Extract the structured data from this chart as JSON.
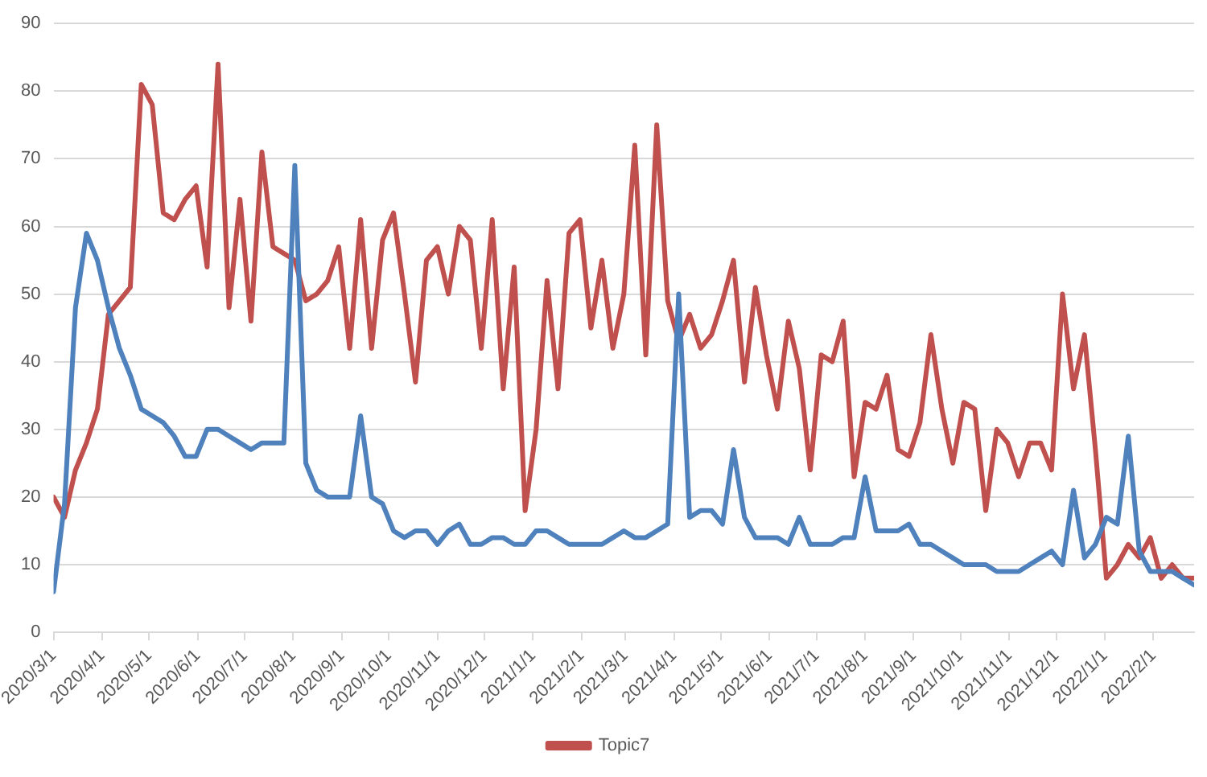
{
  "chart_data": {
    "type": "line",
    "x": [
      "2020-03-01",
      "2020-03-08",
      "2020-03-15",
      "2020-03-22",
      "2020-03-29",
      "2020-04-05",
      "2020-04-12",
      "2020-04-19",
      "2020-04-26",
      "2020-05-03",
      "2020-05-10",
      "2020-05-17",
      "2020-05-24",
      "2020-05-31",
      "2020-06-07",
      "2020-06-14",
      "2020-06-21",
      "2020-06-28",
      "2020-07-05",
      "2020-07-12",
      "2020-07-19",
      "2020-07-26",
      "2020-08-02",
      "2020-08-09",
      "2020-08-16",
      "2020-08-23",
      "2020-08-30",
      "2020-09-06",
      "2020-09-13",
      "2020-09-20",
      "2020-09-27",
      "2020-10-04",
      "2020-10-11",
      "2020-10-18",
      "2020-10-25",
      "2020-11-01",
      "2020-11-08",
      "2020-11-15",
      "2020-11-22",
      "2020-11-29",
      "2020-12-06",
      "2020-12-13",
      "2020-12-20",
      "2020-12-27",
      "2021-01-03",
      "2021-01-10",
      "2021-01-17",
      "2021-01-24",
      "2021-01-31",
      "2021-02-07",
      "2021-02-14",
      "2021-02-21",
      "2021-02-28",
      "2021-03-07",
      "2021-03-14",
      "2021-03-21",
      "2021-03-28",
      "2021-04-04",
      "2021-04-11",
      "2021-04-18",
      "2021-04-25",
      "2021-05-02",
      "2021-05-09",
      "2021-05-16",
      "2021-05-23",
      "2021-05-30",
      "2021-06-06",
      "2021-06-13",
      "2021-06-20",
      "2021-06-27",
      "2021-07-04",
      "2021-07-11",
      "2021-07-18",
      "2021-07-25",
      "2021-08-01",
      "2021-08-08",
      "2021-08-15",
      "2021-08-22",
      "2021-08-29",
      "2021-09-05",
      "2021-09-12",
      "2021-09-19",
      "2021-09-26",
      "2021-10-03",
      "2021-10-10",
      "2021-10-17",
      "2021-10-24",
      "2021-10-31",
      "2021-11-07",
      "2021-11-14",
      "2021-11-21",
      "2021-11-28",
      "2021-12-05",
      "2021-12-12",
      "2021-12-19",
      "2021-12-26",
      "2022-01-02",
      "2022-01-09",
      "2022-01-16",
      "2022-01-23",
      "2022-01-30",
      "2022-02-06",
      "2022-02-13",
      "2022-02-20",
      "2022-02-27"
    ],
    "series": [
      {
        "color": "#4f81bd",
        "values": [
          6,
          19,
          48,
          59,
          55,
          48,
          42,
          38,
          33,
          32,
          31,
          29,
          26,
          26,
          30,
          30,
          29,
          28,
          27,
          28,
          28,
          28,
          69,
          25,
          21,
          20,
          20,
          20,
          32,
          20,
          19,
          15,
          14,
          15,
          15,
          13,
          15,
          16,
          13,
          13,
          14,
          14,
          13,
          13,
          15,
          15,
          14,
          13,
          13,
          13,
          13,
          14,
          15,
          14,
          14,
          15,
          16,
          50,
          17,
          18,
          18,
          16,
          27,
          17,
          14,
          14,
          14,
          13,
          17,
          13,
          13,
          13,
          14,
          14,
          23,
          15,
          15,
          15,
          16,
          13,
          13,
          12,
          11,
          10,
          10,
          10,
          9,
          9,
          9,
          10,
          11,
          12,
          10,
          21,
          11,
          13,
          17,
          16,
          29,
          12,
          9,
          9,
          9,
          8,
          7
        ]
      },
      {
        "name": "Topic7",
        "color": "#c0504d",
        "values": [
          20,
          17,
          24,
          28,
          33,
          47,
          49,
          51,
          81,
          78,
          62,
          61,
          64,
          66,
          54,
          84,
          48,
          64,
          46,
          71,
          57,
          56,
          55,
          49,
          50,
          52,
          57,
          42,
          61,
          42,
          58,
          62,
          50,
          37,
          55,
          57,
          50,
          60,
          58,
          42,
          61,
          36,
          54,
          18,
          30,
          52,
          36,
          59,
          61,
          45,
          55,
          42,
          50,
          72,
          41,
          75,
          49,
          43,
          47,
          42,
          44,
          49,
          55,
          37,
          51,
          41,
          33,
          46,
          39,
          24,
          41,
          40,
          46,
          23,
          34,
          33,
          38,
          27,
          26,
          31,
          44,
          33,
          25,
          34,
          33,
          18,
          30,
          28,
          23,
          28,
          28,
          24,
          50,
          36,
          44,
          27,
          8,
          10,
          13,
          11,
          14,
          8,
          10,
          8,
          8
        ]
      }
    ],
    "xlim": [
      "2020-03-01",
      "2022-02-27"
    ],
    "xticks": [
      {
        "value": "2020-03-01",
        "label": "2020/3/1"
      },
      {
        "value": "2020-04-01",
        "label": "2020/4/1"
      },
      {
        "value": "2020-05-01",
        "label": "2020/5/1"
      },
      {
        "value": "2020-06-01",
        "label": "2020/6/1"
      },
      {
        "value": "2020-07-01",
        "label": "2020/7/1"
      },
      {
        "value": "2020-08-01",
        "label": "2020/8/1"
      },
      {
        "value": "2020-09-01",
        "label": "2020/9/1"
      },
      {
        "value": "2020-10-01",
        "label": "2020/10/1"
      },
      {
        "value": "2020-11-01",
        "label": "2020/11/1"
      },
      {
        "value": "2020-12-01",
        "label": "2020/12/1"
      },
      {
        "value": "2021-01-01",
        "label": "2021/1/1"
      },
      {
        "value": "2021-02-01",
        "label": "2021/2/1"
      },
      {
        "value": "2021-03-01",
        "label": "2021/3/1"
      },
      {
        "value": "2021-04-01",
        "label": "2021/4/1"
      },
      {
        "value": "2021-05-01",
        "label": "2021/5/1"
      },
      {
        "value": "2021-06-01",
        "label": "2021/6/1"
      },
      {
        "value": "2021-07-01",
        "label": "2021/7/1"
      },
      {
        "value": "2021-08-01",
        "label": "2021/8/1"
      },
      {
        "value": "2021-09-01",
        "label": "2021/9/1"
      },
      {
        "value": "2021-10-01",
        "label": "2021/10/1"
      },
      {
        "value": "2021-11-01",
        "label": "2021/11/1"
      },
      {
        "value": "2021-12-01",
        "label": "2021/12/1"
      },
      {
        "value": "2022-01-01",
        "label": "2022/1/1"
      },
      {
        "value": "2022-02-01",
        "label": "2022/2/1"
      }
    ],
    "ylim": [
      0,
      90
    ],
    "yticks": [
      0,
      10,
      20,
      30,
      40,
      50,
      60,
      70,
      80,
      90
    ],
    "grid": "y",
    "legend": "bottom",
    "marker": "none",
    "line_style": "solid"
  }
}
